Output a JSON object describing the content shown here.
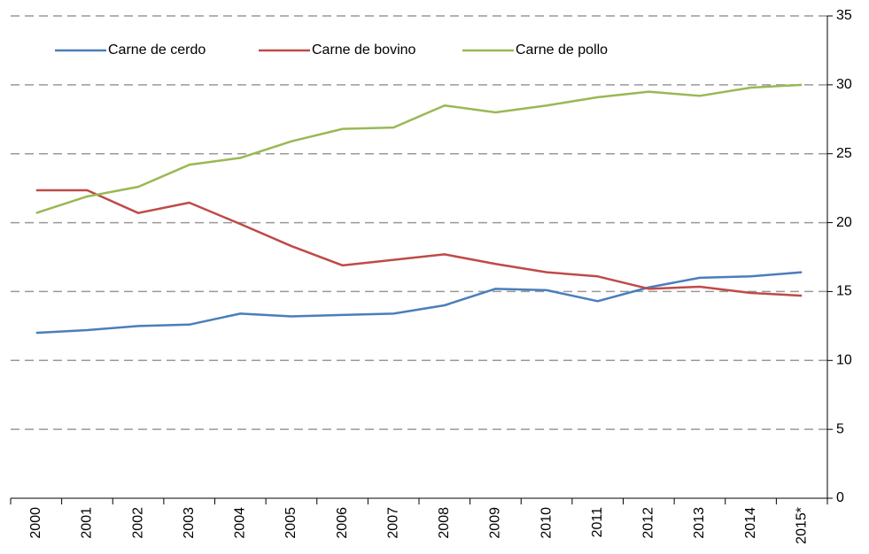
{
  "chart_data": {
    "type": "line",
    "categories": [
      "2000",
      "2001",
      "2002",
      "2003",
      "2004",
      "2005",
      "2006",
      "2007",
      "2008",
      "2009",
      "2010",
      "2011",
      "2012",
      "2013",
      "2014",
      "2015*"
    ],
    "series": [
      {
        "name": "Carne de cerdo",
        "color": "#4a7ebb",
        "values": [
          12.0,
          12.2,
          12.5,
          12.6,
          13.4,
          13.2,
          13.3,
          13.4,
          14.0,
          15.2,
          15.1,
          14.3,
          15.3,
          16.0,
          16.1,
          16.4
        ]
      },
      {
        "name": "Carne de bovino",
        "color": "#be4b48",
        "values": [
          22.35,
          22.35,
          20.7,
          21.45,
          19.9,
          18.3,
          16.9,
          17.3,
          17.7,
          17.0,
          16.4,
          16.1,
          15.2,
          15.35,
          14.9,
          14.7
        ]
      },
      {
        "name": "Carne de pollo",
        "color": "#98b954",
        "values": [
          20.7,
          21.9,
          22.6,
          24.2,
          24.7,
          25.9,
          26.8,
          26.9,
          28.5,
          28.0,
          28.5,
          29.1,
          29.5,
          29.2,
          29.8,
          30.0
        ]
      }
    ],
    "ylim": [
      0,
      35
    ],
    "yticks": [
      0,
      5,
      10,
      15,
      20,
      25,
      30,
      35
    ],
    "grid": true,
    "y_axis_side": "right",
    "legend": "top-left"
  }
}
